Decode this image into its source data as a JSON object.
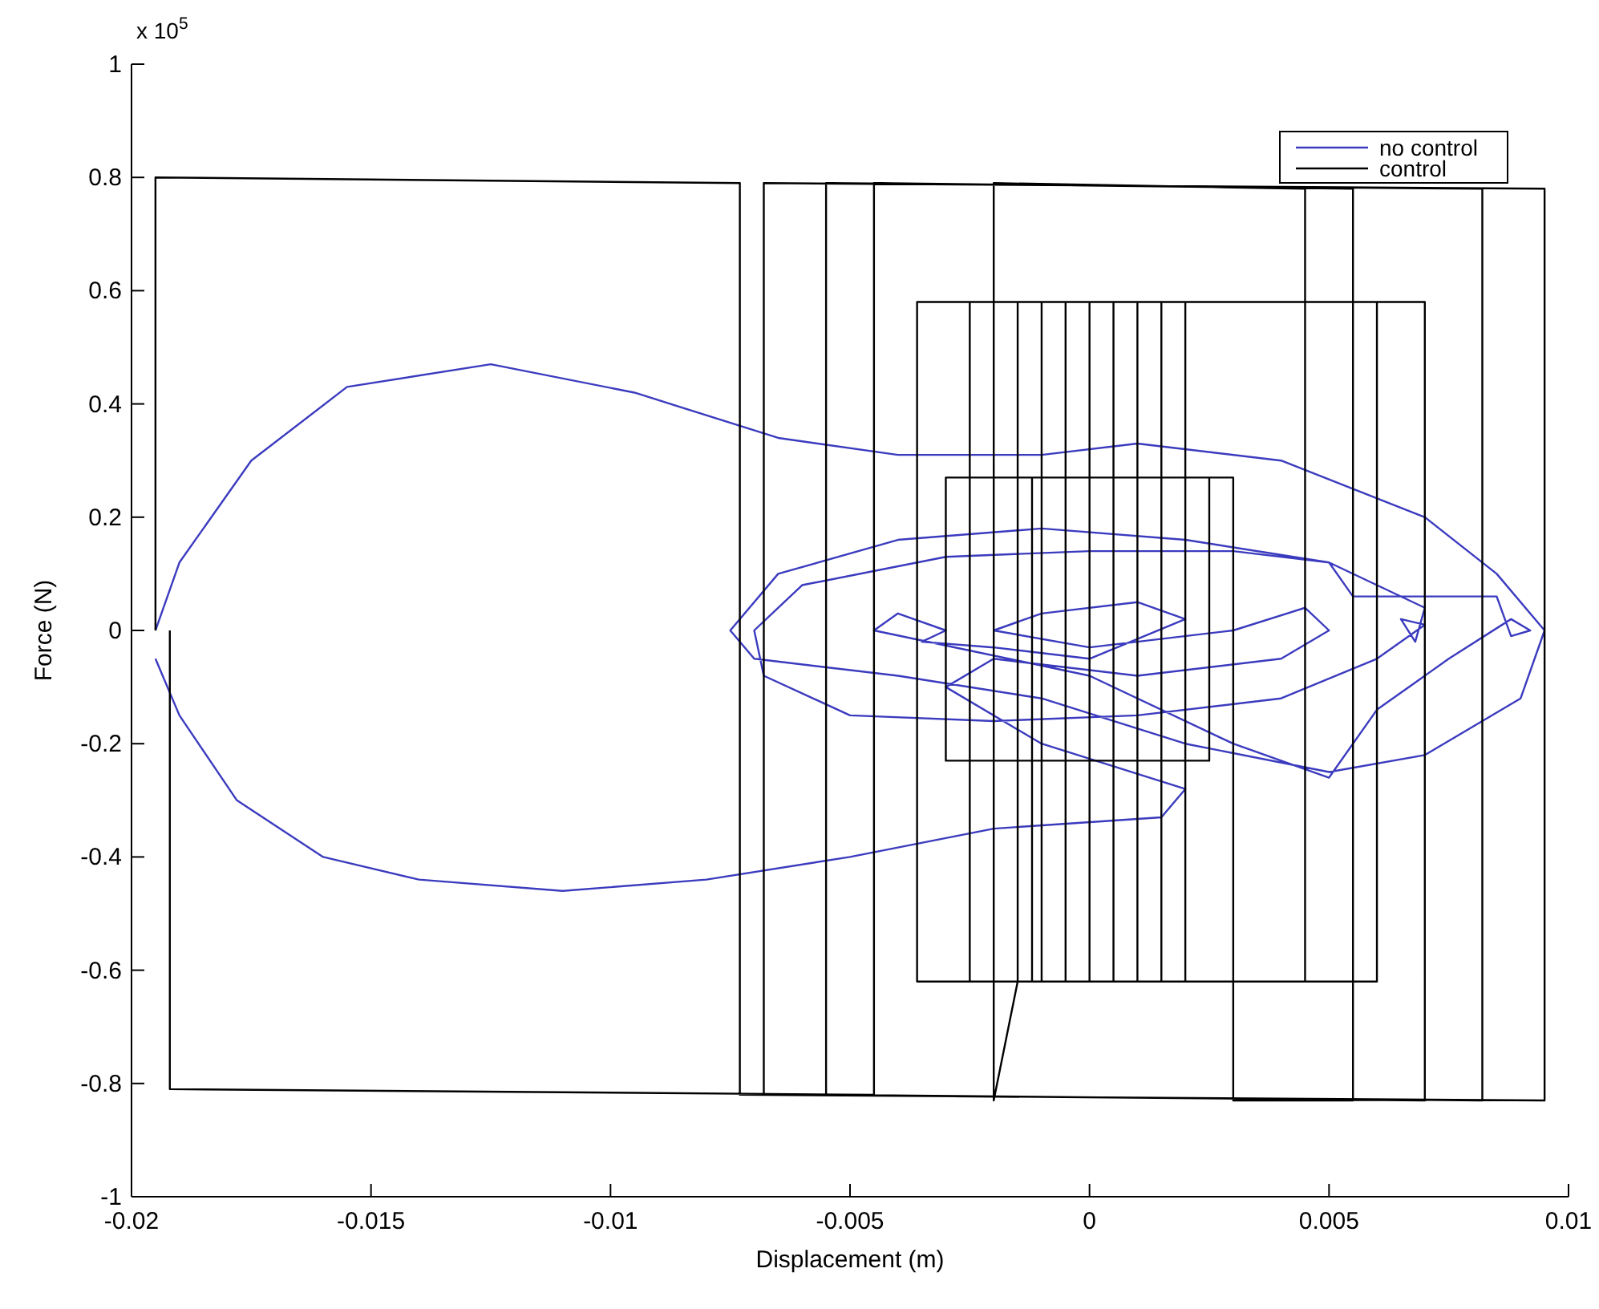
{
  "chart_data": {
    "type": "line",
    "xlabel": "Displacement (m)",
    "ylabel": "Force (N)",
    "annotations": [
      "x 10$^{5}$"
    ],
    "xlim": [
      -0.02,
      0.01
    ],
    "ylim": [
      -1,
      1
    ],
    "xticks": [
      -0.02,
      -0.015,
      -0.01,
      -0.005,
      0,
      0.005,
      0.01
    ],
    "yticks": [
      -1,
      -0.8,
      -0.6,
      -0.4,
      -0.2,
      0,
      0.2,
      0.4,
      0.6,
      0.8,
      1
    ],
    "grid": false,
    "legend": "top right",
    "line_style": "solid",
    "series": [
      {
        "name": "no control",
        "color": "#3b3bbf",
        "x": [
          -0.0195,
          -0.019,
          -0.0175,
          -0.0155,
          -0.0125,
          -0.0095,
          -0.0065,
          -0.004,
          -0.001,
          0.001,
          0.004,
          0.007,
          0.0085,
          0.0095,
          0.009,
          0.007,
          0.005,
          0.002,
          -0.001,
          -0.004,
          -0.007,
          -0.0075,
          -0.0065,
          -0.004,
          -0.001,
          0.002,
          0.005,
          0.007,
          0.0068,
          0.0065,
          0.007,
          0.006,
          0.004,
          0.001,
          -0.002,
          -0.005,
          -0.0068,
          -0.007,
          -0.006,
          -0.003,
          0,
          0.003,
          0.005,
          0.0055,
          0.0085,
          0.0088,
          0.0092,
          0.0088,
          0.0075,
          0.006,
          0.005,
          0.003,
          0,
          -0.0045,
          -0.004,
          -0.003,
          -0.0035,
          -0.002,
          0,
          0.002,
          0.001,
          -0.001,
          -0.002,
          0,
          0.003,
          0.0045,
          0.005,
          0.004,
          0.001,
          -0.002,
          -0.003,
          -0.001,
          0.002,
          0.0015,
          -0.002,
          -0.005,
          -0.008,
          -0.011,
          -0.014,
          -0.016,
          -0.0178,
          -0.019,
          -0.0195
        ],
        "values": [
          0,
          0.12,
          0.3,
          0.43,
          0.47,
          0.42,
          0.34,
          0.31,
          0.31,
          0.33,
          0.3,
          0.2,
          0.1,
          0,
          -0.12,
          -0.22,
          -0.25,
          -0.2,
          -0.12,
          -0.08,
          -0.05,
          0,
          0.1,
          0.16,
          0.18,
          0.16,
          0.12,
          0.04,
          -0.02,
          0.02,
          0.01,
          -0.05,
          -0.12,
          -0.15,
          -0.16,
          -0.15,
          -0.08,
          0,
          0.08,
          0.13,
          0.14,
          0.14,
          0.12,
          0.06,
          0.06,
          -0.01,
          0,
          0.02,
          -0.05,
          -0.14,
          -0.26,
          -0.2,
          -0.08,
          0,
          0.03,
          0,
          -0.02,
          -0.03,
          -0.05,
          0.02,
          0.05,
          0.03,
          0,
          -0.03,
          0,
          0.04,
          0,
          -0.05,
          -0.08,
          -0.05,
          -0.1,
          -0.2,
          -0.28,
          -0.33,
          -0.35,
          -0.4,
          -0.44,
          -0.46,
          -0.44,
          -0.4,
          -0.3,
          -0.15,
          -0.05
        ]
      },
      {
        "name": "control",
        "color": "#000000",
        "x": [
          -0.0195,
          -0.0195,
          -0.0073,
          -0.0073,
          -0.0073,
          0.0095,
          0.0095,
          -0.0068,
          -0.0068,
          0.0082,
          0.0082,
          -0.0055,
          -0.0055,
          0.007,
          0.007,
          -0.0036,
          -0.0036,
          0.006,
          0.006,
          -0.0025,
          -0.0025,
          0.0045,
          0.0045,
          -0.002,
          -0.002,
          -0.0015,
          -0.0015,
          0.002,
          0.002,
          -0.001,
          -0.001,
          0.0015,
          0.0015,
          -0.0005,
          -0.0005,
          0.001,
          0.001,
          0,
          0,
          0.0005,
          0.0005,
          -0.0012,
          -0.0012,
          0.0025,
          0.0025,
          -0.003,
          -0.003,
          0.003,
          0.003,
          0.0055,
          0.0055,
          -0.0045,
          -0.0045,
          -0.0192,
          -0.0192
        ],
        "values": [
          0,
          0.8,
          0.79,
          -0.05,
          -0.82,
          -0.83,
          0.78,
          0.79,
          -0.82,
          -0.83,
          0.78,
          0.79,
          -0.82,
          -0.83,
          0.58,
          0.58,
          -0.62,
          -0.62,
          0.58,
          0.58,
          -0.62,
          -0.62,
          0.78,
          0.79,
          -0.83,
          -0.62,
          0.58,
          0.58,
          -0.62,
          -0.62,
          0.58,
          0.58,
          -0.62,
          -0.62,
          0.58,
          0.58,
          -0.62,
          -0.62,
          0.58,
          0.58,
          -0.62,
          -0.62,
          0.27,
          0.27,
          -0.23,
          -0.23,
          0.27,
          0.27,
          -0.83,
          -0.83,
          0.78,
          0.79,
          -0.82,
          -0.81,
          0
        ]
      }
    ]
  }
}
